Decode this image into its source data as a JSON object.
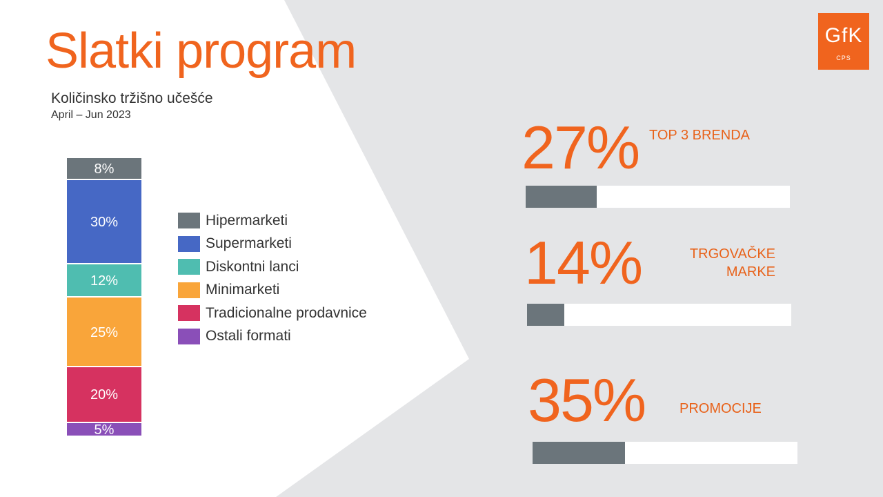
{
  "title": "Slatki program",
  "subtitle": "Količinsko tržišno učešće",
  "period": "April – Jun 2023",
  "logo": {
    "main": "GfK",
    "sub": "CPS"
  },
  "chart_data": {
    "type": "bar",
    "subtype": "stacked-100",
    "categories": [
      "Hipermarketi",
      "Supermarketi",
      "Diskontni lanci",
      "Minimarketi",
      "Tradicionalne prodavnice",
      "Ostali formati"
    ],
    "values": [
      8,
      30,
      12,
      25,
      20,
      5
    ],
    "labels": [
      "8%",
      "30%",
      "12%",
      "25%",
      "20%",
      "5%"
    ],
    "colors": [
      "#6b757b",
      "#4668c5",
      "#4fbdb0",
      "#f9a53a",
      "#d63260",
      "#8a4fb8"
    ],
    "legend_position": "right"
  },
  "kpis": [
    {
      "value": "27%",
      "label": "TOP  3 BRENDA",
      "fraction": 0.27
    },
    {
      "value": "14%",
      "label": "TRGOVAČKE\nMARKE",
      "fraction": 0.14
    },
    {
      "value": "35%",
      "label": "PROMOCIJE",
      "fraction": 0.35
    }
  ]
}
